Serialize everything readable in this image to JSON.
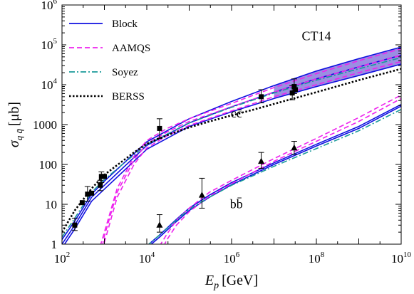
{
  "chart_data": {
    "type": "line",
    "xlabel": "E_p [GeV]",
    "xlabel_parts": {
      "symbol": "E",
      "sub": "p",
      "unit": "[GeV]"
    },
    "ylabel": "σ_{q q̄} [μb]",
    "ylabel_parts": {
      "symbol": "σ",
      "sub": "q q̄",
      "unit": "[μb]"
    },
    "x_scale": "log",
    "y_scale": "log",
    "xlim": [
      100,
      10000000000
    ],
    "ylim": [
      1,
      1000000
    ],
    "x_ticks": [
      {
        "base": "10",
        "exp": "2",
        "value": 100
      },
      {
        "base": "10",
        "exp": "4",
        "value": 10000
      },
      {
        "base": "10",
        "exp": "6",
        "value": 1000000
      },
      {
        "base": "10",
        "exp": "8",
        "value": 100000000
      },
      {
        "base": "10",
        "exp": "10",
        "value": 10000000000
      }
    ],
    "y_ticks": [
      {
        "text": "1",
        "value": 1
      },
      {
        "text": "10",
        "value": 10
      },
      {
        "text": "100",
        "value": 100
      },
      {
        "text": "1000",
        "value": 1000
      },
      {
        "base": "10",
        "exp": "4",
        "value": 10000
      },
      {
        "base": "10",
        "exp": "5",
        "value": 100000
      },
      {
        "base": "10",
        "exp": "6",
        "value": 1000000
      }
    ],
    "grid": false,
    "legend_position": "top-left",
    "annotations": [
      {
        "text": "CT14",
        "x": 100000000,
        "y": 130000
      },
      {
        "text": "cc̄",
        "x": 1300000,
        "y": 1500
      },
      {
        "text": "bb̄",
        "x": 1300000,
        "y": 8
      }
    ],
    "series": [
      {
        "name": "Block",
        "color": "#1010e0",
        "style": "solid",
        "band_fill": "#7a68d8",
        "curves": [
          {
            "quark": "c",
            "x": [
              100,
              200,
              500,
              1000,
              10000,
              100000,
              1000000,
              10000000,
              100000000,
              1000000000,
              10000000000
            ],
            "y": [
              1.0,
              3.0,
              15,
              30,
              300,
              1100,
              2800,
              6500,
              14000,
              28000,
              55000
            ]
          },
          {
            "quark": "c",
            "x": [
              100,
              200,
              500,
              1000,
              10000,
              100000,
              1000000,
              10000000,
              100000000,
              1000000000,
              10000000000
            ],
            "y": [
              1.3,
              3.8,
              18,
              38,
              370,
              1400,
              3800,
              9500,
              22000,
              45000,
              88000
            ]
          },
          {
            "quark": "c",
            "x": [
              100,
              200,
              500,
              1000,
              10000,
              100000,
              1000000,
              10000000,
              100000000,
              1000000000,
              10000000000
            ],
            "y": [
              0.8,
              2.4,
              12,
              24,
              240,
              900,
              2100,
              4500,
              9000,
              17000,
              33000
            ]
          },
          {
            "quark": "b",
            "x": [
              10000,
              20000,
              50000,
              100000,
              300000,
              1000000,
              10000000,
              100000000,
              1000000000,
              10000000000
            ],
            "y": [
              0.9,
              1.7,
              4.2,
              8,
              17,
              35,
              110,
              320,
              900,
              3200
            ]
          },
          {
            "quark": "b",
            "x": [
              10000,
              20000,
              50000,
              100000,
              300000,
              1000000,
              10000000,
              100000000,
              1000000000,
              10000000000
            ],
            "y": [
              0.8,
              1.5,
              3.7,
              7,
              15,
              31,
              100,
              290,
              800,
              2900
            ]
          }
        ]
      },
      {
        "name": "AAMQS",
        "color": "#ee22ee",
        "style": "dashed",
        "curves": [
          {
            "quark": "c",
            "x": [
              800,
              1000,
              2000,
              5000,
              10000,
              30000,
              100000,
              1000000,
              10000000,
              100000000,
              1000000000,
              10000000000
            ],
            "y": [
              0.9,
              2,
              25,
              160,
              400,
              800,
              1400,
              3400,
              8500,
              19000,
              40000,
              80000
            ]
          },
          {
            "quark": "c",
            "x": [
              900,
              1000,
              2000,
              5000,
              10000,
              30000,
              100000,
              1000000,
              10000000,
              100000000,
              1000000000,
              10000000000
            ],
            "y": [
              0.9,
              1.6,
              20,
              130,
              330,
              650,
              1200,
              2800,
              6500,
              14000,
              28000,
              55000
            ]
          },
          {
            "quark": "c",
            "x": [
              1000,
              2000,
              5000,
              10000,
              30000,
              100000,
              1000000,
              10000000,
              100000000,
              1000000000,
              10000000000
            ],
            "y": [
              1.1,
              15,
              100,
              260,
              520,
              950,
              2200,
              5000,
              10000,
              20000,
              38000
            ]
          },
          {
            "quark": "b",
            "x": [
              20000,
              30000,
              50000,
              100000,
              300000,
              1000000,
              10000000,
              100000000,
              1000000000,
              10000000000
            ],
            "y": [
              0.9,
              1.8,
              4,
              8,
              20,
              40,
              140,
              450,
              1500,
              5500
            ]
          },
          {
            "quark": "b",
            "x": [
              25000,
              30000,
              50000,
              100000,
              300000,
              1000000,
              10000000,
              100000000,
              1000000000,
              10000000000
            ],
            "y": [
              0.9,
              1.3,
              3,
              6.5,
              16,
              33,
              120,
              380,
              1200,
              4500
            ]
          }
        ]
      },
      {
        "name": "Soyez",
        "color": "#1a9a9a",
        "style": "dashdot",
        "curves": [
          {
            "quark": "c",
            "x": [
              100,
              200,
              500,
              1000,
              10000,
              100000,
              1000000,
              10000000,
              100000000,
              1000000000,
              10000000000
            ],
            "y": [
              1.5,
              4.5,
              20,
              42,
              320,
              1100,
              2700,
              6200,
              13000,
              25000,
              48000
            ]
          },
          {
            "quark": "b",
            "x": [
              10000,
              20000,
              50000,
              100000,
              300000,
              1000000,
              10000000,
              100000000,
              1000000000,
              10000000000
            ],
            "y": [
              0.9,
              1.7,
              4,
              7.5,
              15,
              30,
              90,
              250,
              700,
              2400
            ]
          }
        ]
      },
      {
        "name": "BERSS",
        "color": "#000000",
        "style": "dotted",
        "curves": [
          {
            "quark": "c",
            "x": [
              100,
              200,
              500,
              1000,
              5000,
              10000,
              30000,
              100000,
              300000,
              1000000,
              3000000,
              10000000,
              100000000,
              1000000000,
              10000000000
            ],
            "y": [
              2,
              7,
              25,
              55,
              200,
              330,
              540,
              850,
              1200,
              1700,
              2300,
              3300,
              6500,
              13000,
              25000
            ]
          }
        ]
      },
      {
        "name": "data (c c̄)",
        "marker": "square",
        "color": "#000000",
        "points": [
          {
            "x": 200,
            "y": 3,
            "err": [
              2.2,
              4.5
            ]
          },
          {
            "x": 300,
            "y": 11
          },
          {
            "x": 400,
            "y": 18,
            "err": [
              12,
              28
            ]
          },
          {
            "x": 500,
            "y": 19
          },
          {
            "x": 800,
            "y": 30,
            "err": [
              22,
              40
            ]
          },
          {
            "x": 850,
            "y": 50,
            "err": [
              35,
              65
            ]
          },
          {
            "x": 1000,
            "y": 50
          },
          {
            "x": 20000,
            "y": 800,
            "err": [
              450,
              1400
            ]
          },
          {
            "x": 5000000,
            "y": 5000,
            "err": [
              3500,
              7500
            ]
          },
          {
            "x": 27000000,
            "y": 6200,
            "err": [
              4200,
              9500
            ]
          },
          {
            "x": 30000000,
            "y": 9000,
            "err": [
              6000,
              14000
            ]
          },
          {
            "x": 32000000,
            "y": 7500
          }
        ]
      },
      {
        "name": "data (b b̄)",
        "marker": "triangle",
        "color": "#000000",
        "points": [
          {
            "x": 20000,
            "y": 3,
            "err": [
              2,
              5.5
            ]
          },
          {
            "x": 200000,
            "y": 17,
            "err": [
              8,
              45
            ]
          },
          {
            "x": 5000000,
            "y": 120,
            "err": [
              80,
              200
            ]
          },
          {
            "x": 30000000,
            "y": 260,
            "err": [
              180,
              380
            ]
          }
        ]
      }
    ],
    "band": {
      "quark": "c",
      "series": "Block",
      "color": "#7a68d8",
      "x_start": 10000000,
      "x_end": 10000000000
    }
  }
}
